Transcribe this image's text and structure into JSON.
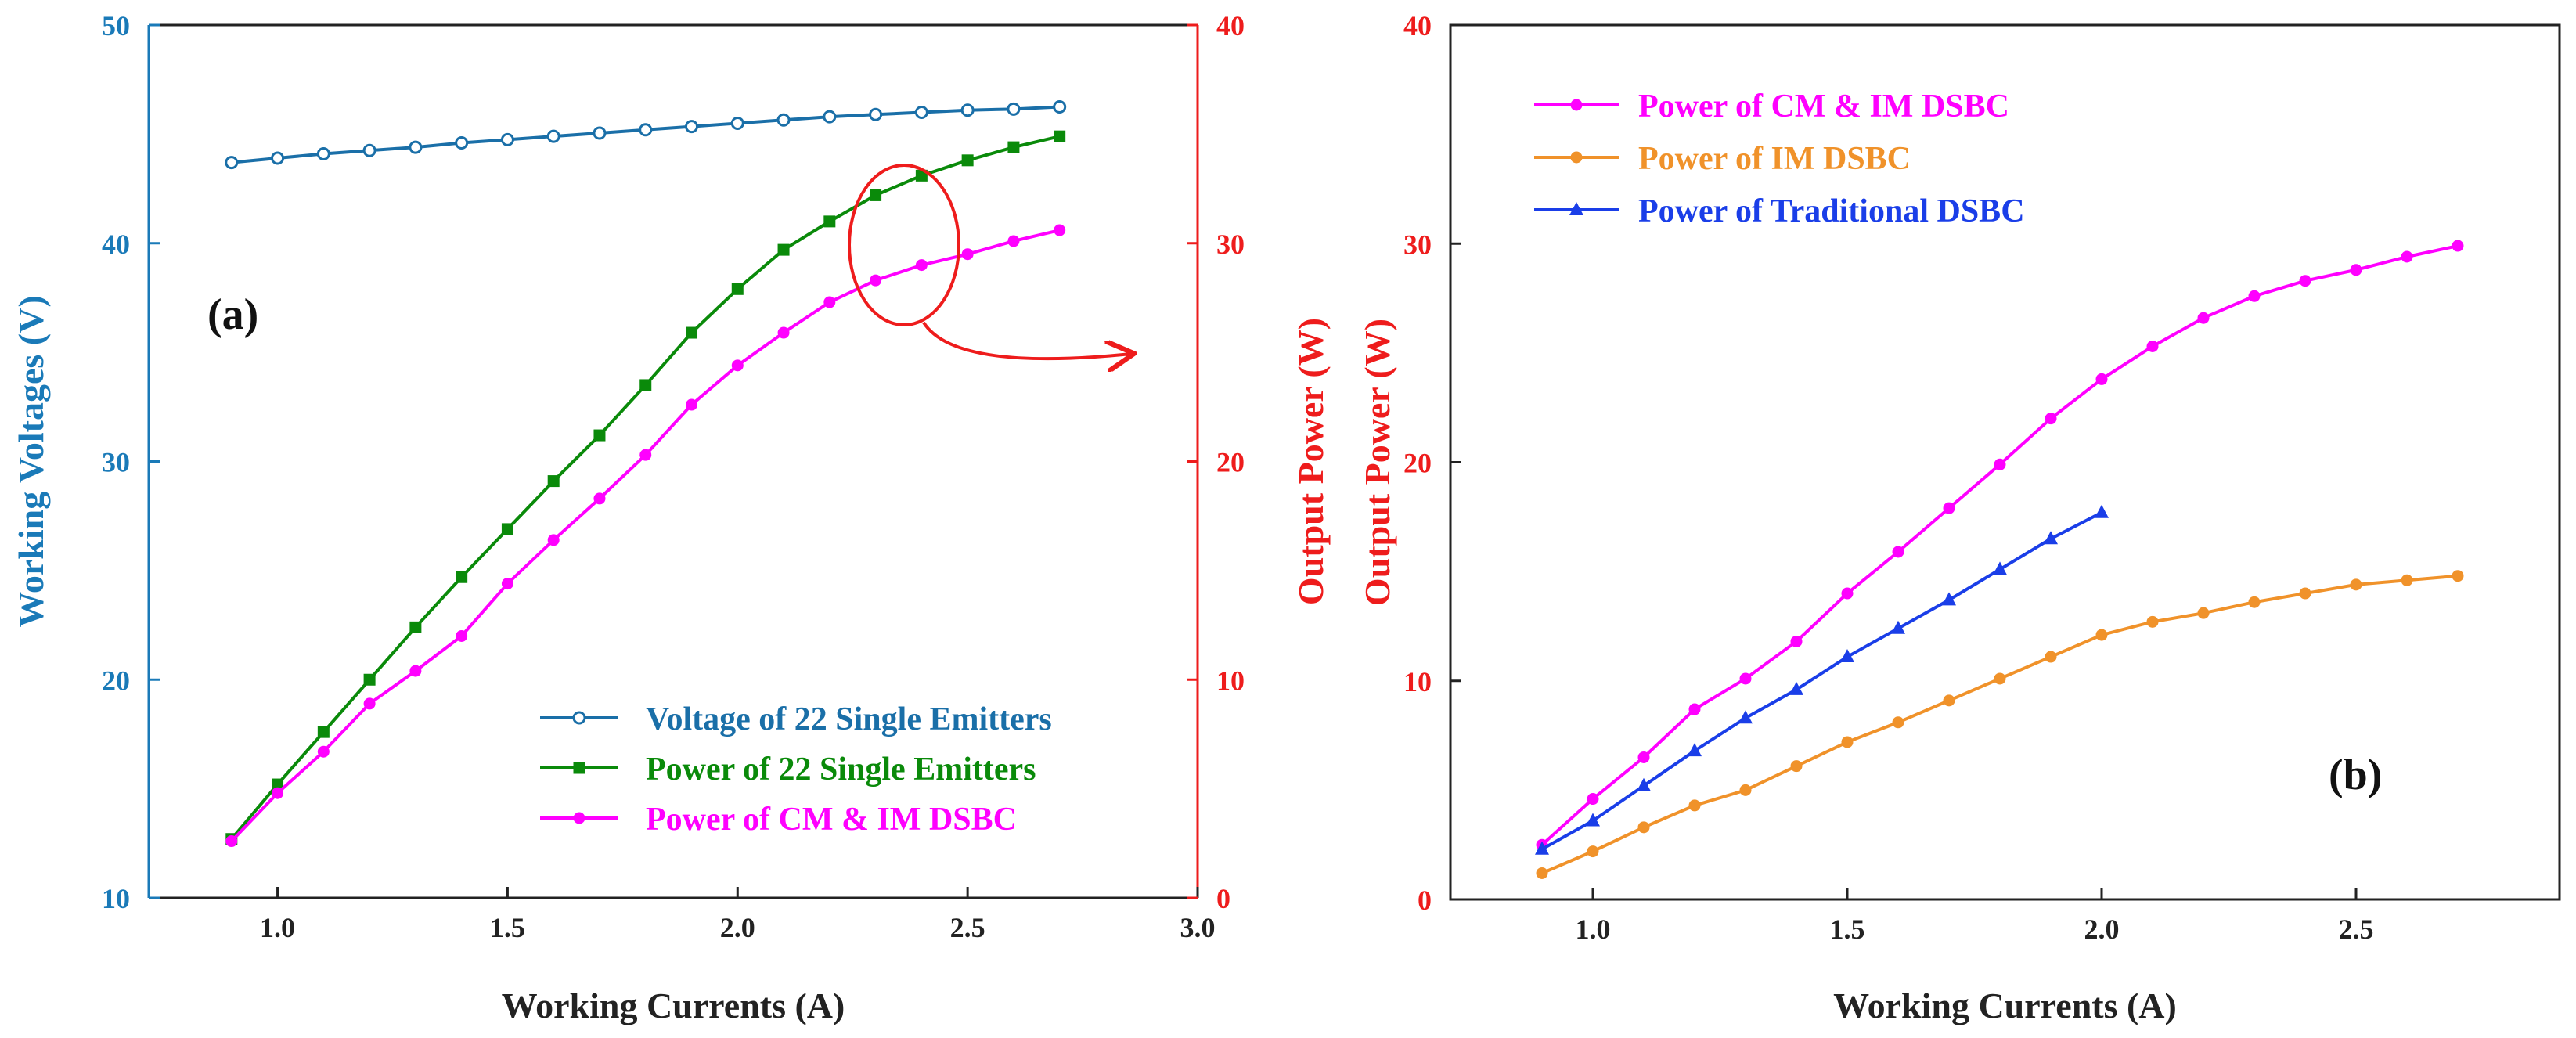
{
  "chart_data": [
    {
      "type": "line",
      "panel_label": "(a)",
      "xlabel": "Working Currents (A)",
      "ylabel_left": "Working Voltages (V)",
      "ylabel_right": "Output Power (W)",
      "xlim": [
        0.72,
        3.0
      ],
      "ylim_left": [
        10,
        50
      ],
      "ylim_right": [
        0,
        40
      ],
      "x_ticks": [
        1.0,
        1.5,
        2.0,
        2.5,
        3.0
      ],
      "x_tick_labels": [
        "1.0",
        "1.5",
        "2.0",
        "2.5",
        "3.0"
      ],
      "y_left_ticks": [
        10,
        20,
        30,
        40,
        50
      ],
      "y_left_tick_labels": [
        "10",
        "20",
        "30",
        "40",
        "50"
      ],
      "y_right_ticks": [
        0,
        10,
        20,
        30,
        40
      ],
      "y_right_tick_labels": [
        "0",
        "10",
        "20",
        "30",
        "40"
      ],
      "colors": {
        "left_axis": "#1a7ab8",
        "right_axis": "#ee1c1c",
        "annotation": "#ee1c1c"
      },
      "x": [
        0.9,
        1.0,
        1.1,
        1.2,
        1.3,
        1.4,
        1.5,
        1.6,
        1.7,
        1.8,
        1.9,
        2.0,
        2.1,
        2.2,
        2.3,
        2.4,
        2.5,
        2.6,
        2.7
      ],
      "series": [
        {
          "name": "Voltage of 22 Single Emitters",
          "axis": "left",
          "color": "#1a6fa8",
          "marker": "open-circle",
          "values": [
            43.7,
            43.9,
            44.1,
            44.25,
            44.4,
            44.6,
            44.75,
            44.9,
            45.05,
            45.2,
            45.35,
            45.5,
            45.65,
            45.8,
            45.9,
            46.0,
            46.1,
            46.15,
            46.25
          ]
        },
        {
          "name": "Power of 22 Single Emitters",
          "axis": "right",
          "color": "#0a8a0a",
          "marker": "square",
          "values": [
            2.7,
            5.2,
            7.6,
            10.0,
            12.4,
            14.7,
            16.9,
            19.1,
            21.2,
            23.5,
            25.9,
            27.9,
            29.7,
            31.0,
            32.2,
            33.1,
            33.8,
            34.4,
            34.9
          ]
        },
        {
          "name": "Power of CM & IM DSBC",
          "axis": "right",
          "color": "#ff00ff",
          "marker": "circle",
          "values": [
            2.6,
            4.8,
            6.7,
            8.9,
            10.4,
            12.0,
            14.4,
            16.4,
            18.3,
            20.3,
            22.6,
            24.4,
            25.9,
            27.3,
            28.3,
            29.0,
            29.5,
            30.1,
            30.6
          ]
        }
      ],
      "legend_position": "bottom-right",
      "annotation": "ellipse around power curves near 2.35 A with arrow pointing to the right axis"
    },
    {
      "type": "line",
      "panel_label": "(b)",
      "xlabel": "Working Currents (A)",
      "ylabel": "Output Power (W)",
      "xlim": [
        0.72,
        2.9
      ],
      "ylim": [
        0,
        40
      ],
      "x_ticks": [
        1.0,
        1.5,
        2.0,
        2.5
      ],
      "x_tick_labels": [
        "1.0",
        "1.5",
        "2.0",
        "2.5"
      ],
      "y_ticks": [
        0,
        10,
        20,
        30,
        40
      ],
      "y_tick_labels": [
        "0",
        "10",
        "20",
        "30",
        "40"
      ],
      "colors": {
        "axis": "#ee1c1c"
      },
      "series": [
        {
          "name": "Power of CM & IM DSBC",
          "color": "#ff00ff",
          "marker": "circle",
          "x": [
            0.9,
            1.0,
            1.1,
            1.2,
            1.3,
            1.4,
            1.5,
            1.6,
            1.7,
            1.8,
            1.9,
            2.0,
            2.1,
            2.2,
            2.3,
            2.4,
            2.5,
            2.6,
            2.7
          ],
          "values": [
            2.5,
            4.6,
            6.5,
            8.7,
            10.1,
            11.8,
            14.0,
            15.9,
            17.9,
            19.9,
            22.0,
            23.8,
            25.3,
            26.6,
            27.6,
            28.3,
            28.8,
            29.4,
            29.9
          ]
        },
        {
          "name": "Power of IM DSBC",
          "color": "#f0922a",
          "marker": "circle",
          "x": [
            0.9,
            1.0,
            1.1,
            1.2,
            1.3,
            1.4,
            1.5,
            1.6,
            1.7,
            1.8,
            1.9,
            2.0,
            2.1,
            2.2,
            2.3,
            2.4,
            2.5,
            2.6,
            2.7
          ],
          "values": [
            1.2,
            2.2,
            3.3,
            4.3,
            5.0,
            6.1,
            7.2,
            8.1,
            9.1,
            10.1,
            11.1,
            12.1,
            12.7,
            13.1,
            13.6,
            14.0,
            14.4,
            14.6,
            14.8
          ]
        },
        {
          "name": "Power of Traditional DSBC",
          "color": "#1a3ee8",
          "marker": "triangle",
          "x": [
            0.9,
            1.0,
            1.1,
            1.2,
            1.3,
            1.4,
            1.5,
            1.6,
            1.7,
            1.8,
            1.9,
            2.0
          ],
          "values": [
            2.3,
            3.6,
            5.2,
            6.8,
            8.3,
            9.6,
            11.1,
            12.4,
            13.7,
            15.1,
            16.5,
            17.7
          ]
        }
      ],
      "legend_position": "top-left"
    }
  ]
}
